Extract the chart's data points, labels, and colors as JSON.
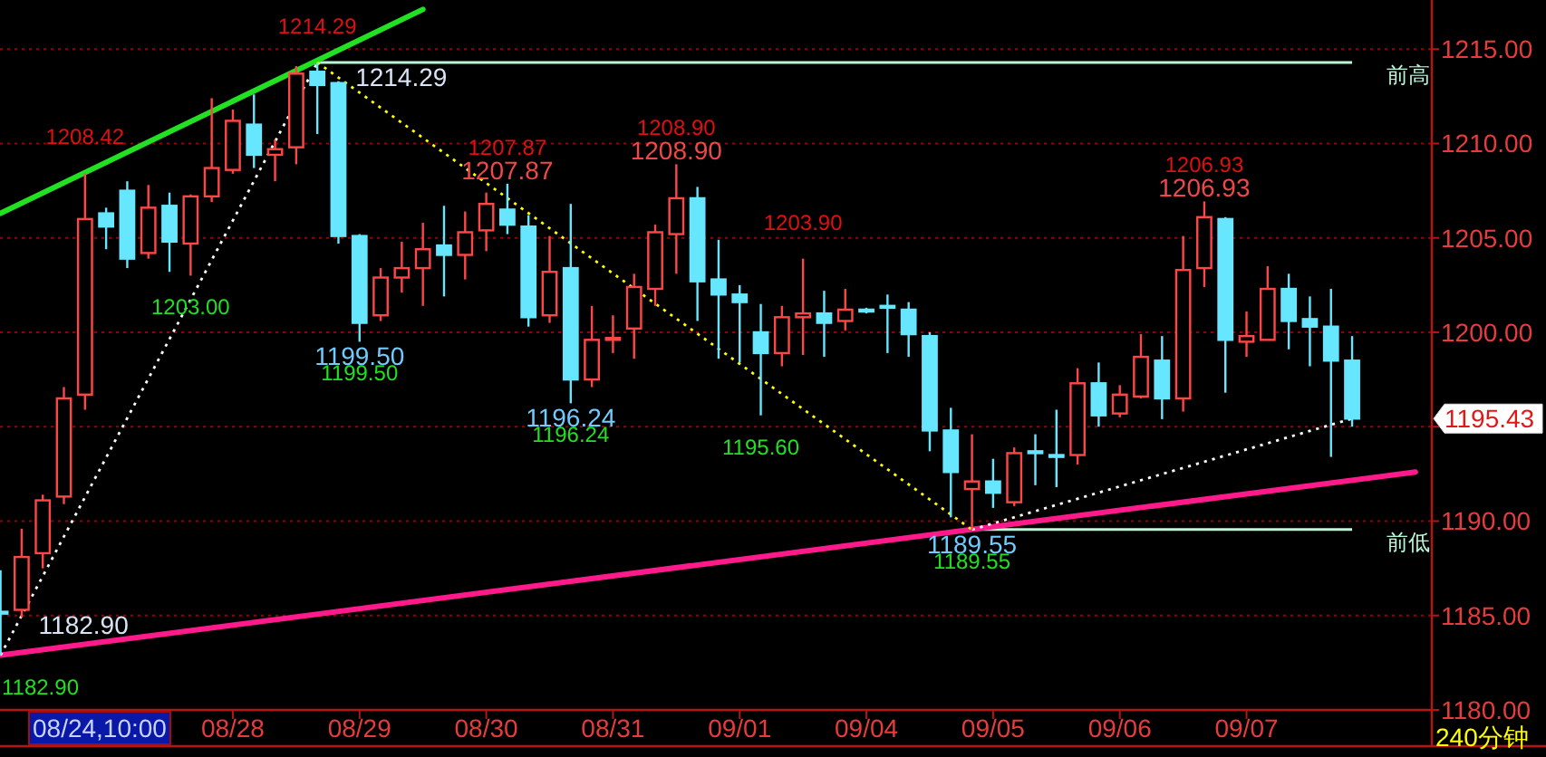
{
  "chart_data": {
    "type": "candlestick",
    "categories": [
      null,
      null,
      null,
      null,
      null,
      null,
      null,
      null,
      null,
      null,
      null,
      "08/28",
      null,
      null,
      null,
      null,
      null,
      "08/29",
      null,
      null,
      null,
      null,
      null,
      "08/30",
      null,
      null,
      null,
      null,
      null,
      "08/31",
      null,
      null,
      null,
      null,
      null,
      "09/01",
      null,
      null,
      null,
      null,
      null,
      "09/04",
      null,
      null,
      null,
      null,
      null,
      "09/05",
      null,
      null,
      null,
      null,
      null,
      "09/06",
      null,
      null,
      null,
      null,
      null,
      "09/07",
      null,
      null,
      null,
      null,
      null,
      null,
      null,
      null
    ],
    "ohlc": [
      [
        1185.2,
        1187.4,
        1182.9,
        1185.1
      ],
      [
        1185.3,
        1189.6,
        1184.9,
        1188.1
      ],
      [
        1188.3,
        1191.4,
        1187.5,
        1191.1
      ],
      [
        1191.3,
        1197.1,
        1190.9,
        1196.5
      ],
      [
        1196.7,
        1208.42,
        1195.9,
        1206.0
      ],
      [
        1206.3,
        1206.6,
        1204.4,
        1205.6
      ],
      [
        1207.5,
        1208.0,
        1203.4,
        1203.9
      ],
      [
        1204.2,
        1207.8,
        1203.9,
        1206.6
      ],
      [
        1206.7,
        1207.4,
        1203.2,
        1204.8
      ],
      [
        1204.7,
        1207.3,
        1203.0,
        1207.2
      ],
      [
        1207.2,
        1212.4,
        1206.9,
        1208.7
      ],
      [
        1208.6,
        1211.8,
        1208.4,
        1211.2
      ],
      [
        1211.0,
        1212.6,
        1208.7,
        1209.4
      ],
      [
        1209.4,
        1210.2,
        1208.0,
        1209.7
      ],
      [
        1209.8,
        1214.1,
        1208.9,
        1213.7
      ],
      [
        1213.8,
        1214.29,
        1210.5,
        1213.1
      ],
      [
        1213.2,
        1213.3,
        1204.7,
        1205.1
      ],
      [
        1205.1,
        1205.2,
        1199.5,
        1200.5
      ],
      [
        1200.9,
        1203.4,
        1200.6,
        1202.9
      ],
      [
        1202.9,
        1204.8,
        1202.1,
        1203.4
      ],
      [
        1203.4,
        1205.8,
        1201.4,
        1204.4
      ],
      [
        1204.6,
        1206.7,
        1201.9,
        1204.1
      ],
      [
        1204.1,
        1206.4,
        1202.8,
        1205.3
      ],
      [
        1205.4,
        1207.4,
        1204.3,
        1206.8
      ],
      [
        1206.5,
        1207.87,
        1205.2,
        1205.7
      ],
      [
        1205.6,
        1206.2,
        1200.3,
        1200.8
      ],
      [
        1200.9,
        1205.1,
        1200.5,
        1203.2
      ],
      [
        1203.4,
        1206.8,
        1196.24,
        1197.5
      ],
      [
        1197.5,
        1201.4,
        1197.1,
        1199.6
      ],
      [
        1199.6,
        1200.9,
        1198.9,
        1199.7
      ],
      [
        1200.2,
        1203.1,
        1198.6,
        1202.4
      ],
      [
        1202.3,
        1205.7,
        1201.4,
        1205.3
      ],
      [
        1205.2,
        1208.9,
        1203.1,
        1207.1
      ],
      [
        1207.1,
        1207.7,
        1200.6,
        1202.7
      ],
      [
        1202.8,
        1204.9,
        1198.6,
        1202.0
      ],
      [
        1202.0,
        1202.5,
        1198.4,
        1201.6
      ],
      [
        1200.0,
        1201.5,
        1195.6,
        1198.9
      ],
      [
        1198.9,
        1201.4,
        1198.2,
        1200.8
      ],
      [
        1200.8,
        1203.9,
        1198.8,
        1201.0
      ],
      [
        1201.0,
        1202.2,
        1198.7,
        1200.5
      ],
      [
        1200.6,
        1202.3,
        1200.1,
        1201.2
      ],
      [
        1201.2,
        1201.3,
        1201.0,
        1201.1
      ],
      [
        1201.4,
        1202.0,
        1198.9,
        1201.3
      ],
      [
        1201.2,
        1201.6,
        1198.7,
        1199.9
      ],
      [
        1199.8,
        1200.0,
        1193.7,
        1194.8
      ],
      [
        1194.8,
        1196.0,
        1190.2,
        1192.6
      ],
      [
        1191.7,
        1194.6,
        1189.55,
        1192.1
      ],
      [
        1192.1,
        1193.3,
        1190.7,
        1191.5
      ],
      [
        1191.0,
        1193.9,
        1190.8,
        1193.6
      ],
      [
        1193.7,
        1194.6,
        1191.9,
        1193.6
      ],
      [
        1193.5,
        1195.9,
        1191.8,
        1193.4
      ],
      [
        1193.5,
        1198.1,
        1193.0,
        1197.3
      ],
      [
        1197.3,
        1198.4,
        1195.0,
        1195.6
      ],
      [
        1195.7,
        1197.2,
        1195.5,
        1196.7
      ],
      [
        1196.6,
        1199.9,
        1196.5,
        1198.7
      ],
      [
        1198.5,
        1199.8,
        1195.4,
        1196.5
      ],
      [
        1196.5,
        1205.1,
        1195.8,
        1203.3
      ],
      [
        1203.4,
        1206.93,
        1202.4,
        1206.1
      ],
      [
        1206.0,
        1206.1,
        1196.8,
        1199.6
      ],
      [
        1199.5,
        1201.1,
        1198.7,
        1199.8
      ],
      [
        1199.6,
        1203.5,
        1199.6,
        1202.3
      ],
      [
        1202.3,
        1203.1,
        1199.1,
        1200.6
      ],
      [
        1200.7,
        1201.9,
        1198.2,
        1200.3
      ],
      [
        1200.3,
        1202.3,
        1193.4,
        1198.5
      ],
      [
        1198.5,
        1199.8,
        1195.0,
        1195.43
      ],
      null,
      null,
      null
    ],
    "colors": [
      "#66e6ff",
      "#ff4646",
      "#ff4646",
      "#ff4646",
      "#ff4646",
      "#66e6ff",
      "#66e6ff",
      "#ff4646",
      "#66e6ff",
      "#ff4646",
      "#ff4646",
      "#ff4646",
      "#66e6ff",
      "#ff4646",
      "#ff4646",
      "#66e6ff",
      "#66e6ff",
      "#66e6ff",
      "#ff4646",
      "#ff4646",
      "#ff4646",
      "#66e6ff",
      "#ff4646",
      "#ff4646",
      "#66e6ff",
      "#66e6ff",
      "#ff4646",
      "#66e6ff",
      "#ff4646",
      "#ff4646",
      "#ff4646",
      "#ff4646",
      "#ff4646",
      "#66e6ff",
      "#66e6ff",
      "#66e6ff",
      "#66e6ff",
      "#ff4646",
      "#ff4646",
      "#66e6ff",
      "#ff4646",
      "#66e6ff",
      "#66e6ff",
      "#66e6ff",
      "#66e6ff",
      "#66e6ff",
      "#ff4646",
      "#66e6ff",
      "#ff4646",
      "#66e6ff",
      "#66e6ff",
      "#ff4646",
      "#66e6ff",
      "#ff4646",
      "#ff4646",
      "#66e6ff",
      "#ff4646",
      "#ff4646",
      "#66e6ff",
      "#ff4646",
      "#ff4646",
      "#66e6ff",
      "#66e6ff",
      "#66e6ff",
      "#66e6ff",
      null,
      null,
      null
    ],
    "ylim": [
      1180,
      1217.6
    ],
    "yticks": [
      {
        "value": 1180,
        "label": "1180.00"
      },
      {
        "value": 1185,
        "label": "1185.00"
      },
      {
        "value": 1190,
        "label": "1190.00"
      },
      {
        "value": 1195,
        "label": null
      },
      {
        "value": 1200,
        "label": "1200.00"
      },
      {
        "value": 1205,
        "label": "1205.00"
      },
      {
        "value": 1210,
        "label": "1210.00"
      },
      {
        "value": 1215,
        "label": "1215.00"
      }
    ],
    "grid": "y",
    "series": [
      {
        "type": "line",
        "color": "#22e022",
        "line_style": "solid",
        "values": [
          1206.3,
          null,
          null,
          null,
          null,
          null,
          null,
          null,
          null,
          null,
          null,
          null,
          null,
          null,
          null,
          null,
          null,
          null,
          null,
          null,
          1217.1,
          null,
          null,
          null,
          null,
          null,
          null,
          null,
          null,
          null,
          null,
          null,
          null,
          null,
          null,
          null,
          null,
          null,
          null,
          null,
          null,
          null,
          null,
          null,
          null,
          null,
          null,
          null,
          null,
          null,
          null,
          null,
          null,
          null,
          null,
          null,
          null,
          null,
          null,
          null,
          null,
          null,
          null,
          null,
          null,
          null,
          null,
          null
        ]
      },
      {
        "type": "line",
        "color": "#ff1a8c",
        "line_style": "solid",
        "values": [
          1182.9,
          null,
          null,
          null,
          null,
          null,
          null,
          null,
          null,
          null,
          null,
          null,
          null,
          null,
          null,
          null,
          null,
          null,
          null,
          null,
          null,
          null,
          null,
          null,
          null,
          null,
          null,
          null,
          null,
          null,
          null,
          null,
          null,
          null,
          null,
          null,
          null,
          null,
          null,
          null,
          null,
          null,
          null,
          null,
          null,
          null,
          null,
          null,
          null,
          null,
          null,
          null,
          null,
          null,
          null,
          null,
          null,
          null,
          null,
          null,
          null,
          null,
          null,
          null,
          null,
          null,
          null,
          1192.6
        ]
      },
      {
        "type": "line",
        "color": "#ffffff",
        "line_style": "dotted",
        "values": [
          1182.9,
          null,
          null,
          null,
          null,
          null,
          null,
          null,
          null,
          null,
          null,
          null,
          null,
          null,
          null,
          1214.29,
          null,
          null,
          null,
          null,
          null,
          null,
          null,
          null,
          null,
          null,
          null,
          null,
          null,
          null,
          null,
          null,
          null,
          null,
          null,
          null,
          null,
          null,
          null,
          null,
          null,
          null,
          null,
          null,
          null,
          null,
          null,
          null,
          null,
          null,
          null,
          null,
          null,
          null,
          null,
          null,
          null,
          null,
          null,
          null,
          null,
          null,
          null,
          null,
          null,
          null,
          null,
          null
        ]
      },
      {
        "type": "line",
        "color": "#ffff00",
        "line_style": "dotted",
        "values": [
          null,
          null,
          null,
          null,
          null,
          null,
          null,
          null,
          null,
          null,
          null,
          null,
          null,
          null,
          null,
          1214.29,
          null,
          null,
          null,
          null,
          null,
          null,
          null,
          null,
          null,
          null,
          null,
          null,
          null,
          null,
          null,
          null,
          null,
          null,
          null,
          null,
          null,
          null,
          null,
          null,
          null,
          null,
          null,
          null,
          null,
          null,
          1189.55,
          null,
          null,
          null,
          null,
          null,
          null,
          null,
          null,
          null,
          null,
          null,
          null,
          null,
          null,
          null,
          null,
          null,
          null,
          null,
          null,
          null
        ]
      },
      {
        "type": "line",
        "color": "#ffffff",
        "line_style": "dotted",
        "values": [
          null,
          null,
          null,
          null,
          null,
          null,
          null,
          null,
          null,
          null,
          null,
          null,
          null,
          null,
          null,
          null,
          null,
          null,
          null,
          null,
          null,
          null,
          null,
          null,
          null,
          null,
          null,
          null,
          null,
          null,
          null,
          null,
          null,
          null,
          null,
          null,
          null,
          null,
          null,
          null,
          null,
          null,
          null,
          null,
          null,
          null,
          1189.55,
          null,
          null,
          null,
          null,
          null,
          null,
          null,
          null,
          null,
          null,
          null,
          null,
          null,
          null,
          null,
          null,
          null,
          1195.43,
          null,
          null,
          null
        ]
      }
    ],
    "ref_lines": [
      {
        "axis": "y",
        "value": 1214.29,
        "label": "前高",
        "color": "#b8f8d8"
      },
      {
        "axis": "y",
        "value": 1189.55,
        "label": "前低",
        "color": "#b8f8d8"
      }
    ],
    "annotations": [
      {
        "text": "1214.29",
        "y": 1214.29
      },
      {
        "text": "1214.29",
        "y": 1214.29
      },
      {
        "text": "1208.42",
        "y": 1208.42
      },
      {
        "text": "1203.00",
        "y": 1203.0
      },
      {
        "text": "1199.50",
        "y": 1199.5
      },
      {
        "text": "1199.50",
        "y": 1199.5
      },
      {
        "text": "1207.87",
        "y": 1207.87
      },
      {
        "text": "1207.87",
        "y": 1207.87
      },
      {
        "text": "1196.24",
        "y": 1196.24
      },
      {
        "text": "1196.24",
        "y": 1196.24
      },
      {
        "text": "1208.90",
        "y": 1208.9
      },
      {
        "text": "1208.90",
        "y": 1208.9
      },
      {
        "text": "1195.60",
        "y": 1195.6
      },
      {
        "text": "1203.90",
        "y": 1203.9
      },
      {
        "text": "1189.55",
        "y": 1189.55
      },
      {
        "text": "1189.55",
        "y": 1189.55
      },
      {
        "text": "1206.93",
        "y": 1206.93
      },
      {
        "text": "1206.93",
        "y": 1206.93
      },
      {
        "text": "1182.90",
        "y": 1182.9
      },
      {
        "text": "1182.90",
        "y": 1182.9
      },
      "08/24,10:00",
      "1195.43",
      "240分钟"
    ]
  }
}
